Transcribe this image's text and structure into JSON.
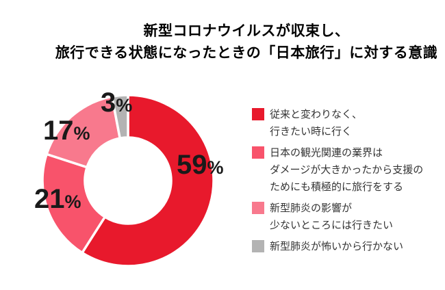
{
  "chart_data": {
    "type": "pie",
    "subtype": "donut",
    "title": "新型コロナウイルスが収束し、旅行できる状態になったときの「日本旅行」に対する意識",
    "title_lines": [
      "新型コロナウイルスが収束し、",
      "旅行できる状態になったときの「日本旅行」に対する意識"
    ],
    "unit": "%",
    "start_angle_deg": 0,
    "direction": "clockwise",
    "donut_hole_ratio": 0.5,
    "legend_position": "right",
    "background_color": "#ffffff",
    "gap_color": "#ffffff",
    "label_color": "#1a1a1a",
    "slices": [
      {
        "value": 59,
        "color": "#e8192c",
        "label": "従来と変わりなく、行きたい時に行く",
        "legend_lines": [
          "従来と変わりなく、",
          "行きたい時に行く"
        ]
      },
      {
        "value": 21,
        "color": "#f8536b",
        "label": "日本の観光関連の業界はダメージが大きかったから支援のためにも積極的に旅行をする",
        "legend_lines": [
          "日本の観光関連の業界は",
          "ダメージが大きかったから支援の",
          "ためにも積極的に旅行をする"
        ]
      },
      {
        "value": 17,
        "color": "#f8798d",
        "label": "新型肺炎の影響が少ないところには行きたい",
        "legend_lines": [
          "新型肺炎の影響が",
          "少ないところには行きたい"
        ]
      },
      {
        "value": 3,
        "color": "#b3b3b3",
        "label": "新型肺炎が怖いから行かない",
        "legend_lines": [
          "新型肺炎が怖いから行かない"
        ]
      }
    ]
  }
}
